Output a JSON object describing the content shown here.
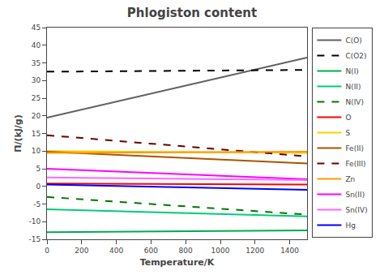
{
  "chart_data": {
    "type": "line",
    "title": "Phlogiston content",
    "xlabel": "Temperature/K",
    "ylabel": "Π/(kJ/g)",
    "x": [
      0,
      1500
    ],
    "xlim": [
      0,
      1500
    ],
    "ylim": [
      -15,
      45
    ],
    "xticks": [
      0,
      200,
      400,
      600,
      800,
      1000,
      1200,
      1400
    ],
    "yticks": [
      -15,
      -10,
      -5,
      0,
      5,
      10,
      15,
      20,
      25,
      30,
      35,
      40,
      45
    ],
    "grid": false,
    "legend": "right",
    "series": [
      {
        "name": "C(O)",
        "color": "#606060",
        "line_style": "solid",
        "values": [
          19.5,
          36.5
        ]
      },
      {
        "name": "C(O2)",
        "color": "#000000",
        "line_style": "dashed",
        "values": [
          32.5,
          33.0
        ]
      },
      {
        "name": "N(I)",
        "color": "#00aa55",
        "line_style": "solid",
        "values": [
          -13.0,
          -12.5
        ]
      },
      {
        "name": "N(II)",
        "color": "#00cc77",
        "line_style": "solid",
        "values": [
          -6.5,
          -8.5
        ]
      },
      {
        "name": "N(IV)",
        "color": "#007700",
        "line_style": "dashed",
        "values": [
          -3.0,
          -8.0
        ]
      },
      {
        "name": "O",
        "color": "#ff0000",
        "line_style": "solid",
        "values": [
          0.8,
          0.5
        ]
      },
      {
        "name": "S",
        "color": "#ffcc00",
        "line_style": "solid",
        "values": [
          10.0,
          9.5
        ]
      },
      {
        "name": "Fe(II)",
        "color": "#aa5500",
        "line_style": "solid",
        "values": [
          9.8,
          6.5
        ]
      },
      {
        "name": "Fe(III)",
        "color": "#660000",
        "line_style": "dashed",
        "values": [
          14.5,
          8.5
        ]
      },
      {
        "name": "Zn",
        "color": "#ff9900",
        "line_style": "solid",
        "values": [
          9.5,
          9.8
        ]
      },
      {
        "name": "Sn(II)",
        "color": "#ff00ff",
        "line_style": "solid",
        "values": [
          5.0,
          2.0
        ]
      },
      {
        "name": "Sn(IV)",
        "color": "#ff66ff",
        "line_style": "solid",
        "values": [
          2.5,
          1.8
        ]
      },
      {
        "name": "Hg",
        "color": "#0000ff",
        "line_style": "solid",
        "values": [
          0.5,
          -1.0
        ]
      }
    ]
  }
}
